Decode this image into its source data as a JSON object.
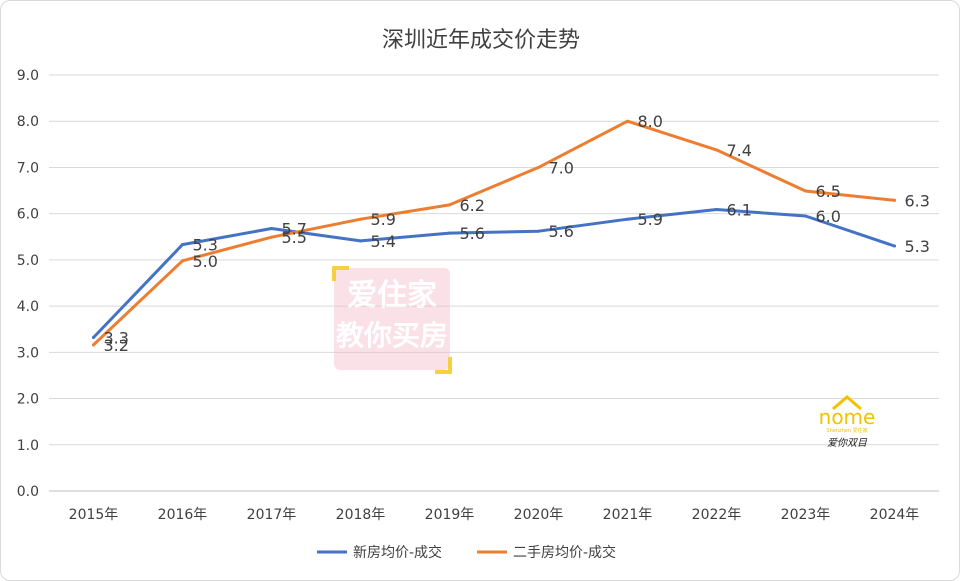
{
  "chart_data": {
    "type": "line",
    "title": "深圳近年成交价走势",
    "categories": [
      "2015年",
      "2016年",
      "2017年",
      "2018年",
      "2019年",
      "2020年",
      "2021年",
      "2022年",
      "2023年",
      "2024年"
    ],
    "ylim": [
      0,
      9
    ],
    "yticks": [
      "0.0",
      "1.0",
      "2.0",
      "3.0",
      "4.0",
      "5.0",
      "6.0",
      "7.0",
      "8.0",
      "9.0"
    ],
    "grid": true,
    "legend_position": "bottom",
    "series": [
      {
        "name": "新房均价-成交",
        "color": "#4472C4",
        "values": [
          3.32,
          5.33,
          5.68,
          5.41,
          5.58,
          5.62,
          5.88,
          6.09,
          5.95,
          5.3
        ],
        "labels": [
          "3.3",
          "5.3",
          "5.7",
          "5.4",
          "5.6",
          "5.6",
          "5.9",
          "6.1",
          "6.0",
          "5.3"
        ]
      },
      {
        "name": "二手房均价-成交",
        "color": "#ED7D31",
        "values": [
          3.16,
          4.98,
          5.49,
          5.88,
          6.19,
          7.0,
          8.0,
          7.38,
          6.49,
          6.29
        ],
        "labels": [
          "3.2",
          "5.0",
          "5.5",
          "5.9",
          "6.2",
          "7.0",
          "8.0",
          "7.4",
          "6.5",
          "6.3"
        ]
      }
    ]
  },
  "watermark": {
    "line1": "爱住家",
    "line2": "教你买房",
    "color": "#f4b6c8"
  },
  "logo": {
    "word": "nome",
    "sub": "Shenzhen 爱住家",
    "caption": "爱你双目",
    "color": "#f2c200"
  }
}
